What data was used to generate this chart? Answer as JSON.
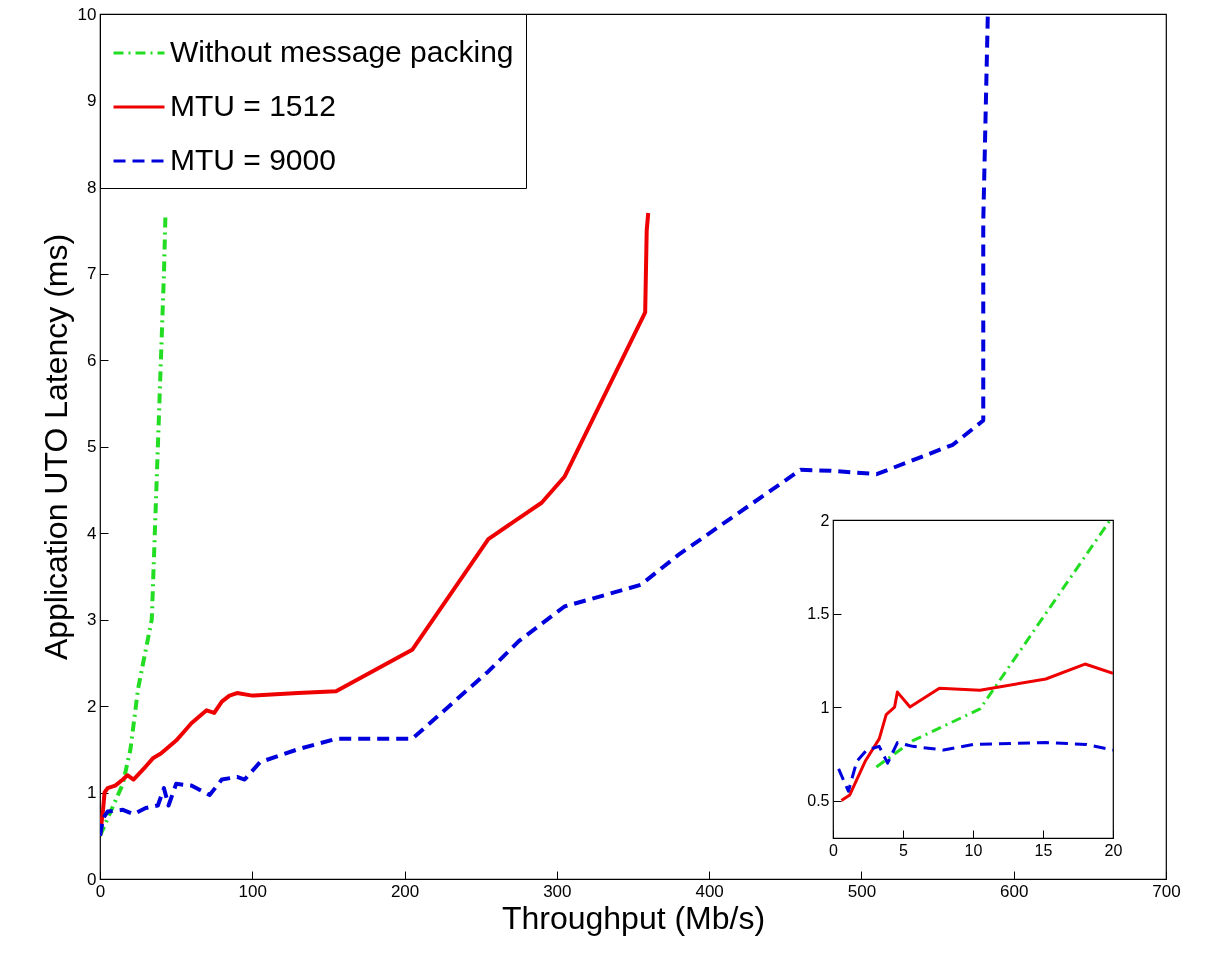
{
  "chart_data": [
    {
      "type": "line",
      "xlabel": "Throughput (Mb/s)",
      "ylabel": "Application UTO Latency (ms)",
      "xlim": [
        0,
        700
      ],
      "ylim": [
        0,
        10
      ],
      "xticks": [
        0,
        100,
        200,
        300,
        400,
        500,
        600,
        700
      ],
      "yticks": [
        0,
        1,
        2,
        3,
        4,
        5,
        6,
        7,
        8,
        9,
        10
      ],
      "grid": false,
      "legend": "top left",
      "series": [
        {
          "name": "Without message packing",
          "color": "#22dd22",
          "line_style": "dashdot",
          "x": [
            0,
            5,
            10,
            15,
            20,
            25,
            34,
            36,
            38,
            40,
            42,
            43
          ],
          "values": [
            0.5,
            0.7,
            0.9,
            1.1,
            1.5,
            2.2,
            3.0,
            4.0,
            5.0,
            6.0,
            7.0,
            7.7
          ]
        },
        {
          "name": "MTU = 1512",
          "color": "#ee0000",
          "line_style": "solid",
          "x": [
            0,
            2,
            3,
            5,
            10,
            15,
            18,
            22,
            30,
            35,
            40,
            50,
            55,
            60,
            70,
            75,
            80,
            85,
            90,
            100,
            130,
            155,
            205,
            255,
            290,
            305,
            358,
            359,
            360
          ],
          "values": [
            0.5,
            0.8,
            1.0,
            1.05,
            1.08,
            1.15,
            1.2,
            1.15,
            1.3,
            1.4,
            1.45,
            1.6,
            1.7,
            1.8,
            1.95,
            1.92,
            2.05,
            2.12,
            2.15,
            2.12,
            2.15,
            2.17,
            2.65,
            3.93,
            4.35,
            4.65,
            6.55,
            7.5,
            7.7
          ]
        },
        {
          "name": "MTU = 9000",
          "color": "#0000dd",
          "line_style": "dashed",
          "x": [
            0,
            2,
            5,
            15,
            22,
            30,
            38,
            42,
            45,
            50,
            60,
            72,
            80,
            90,
            95,
            105,
            130,
            155,
            205,
            255,
            275,
            305,
            355,
            380,
            460,
            480,
            510,
            560,
            580,
            580,
            583
          ],
          "values": [
            0.5,
            0.7,
            0.78,
            0.8,
            0.75,
            0.82,
            0.85,
            1.05,
            0.85,
            1.1,
            1.08,
            0.97,
            1.15,
            1.18,
            1.15,
            1.35,
            1.5,
            1.62,
            1.62,
            2.4,
            2.75,
            3.15,
            3.4,
            3.75,
            4.73,
            4.72,
            4.68,
            5.02,
            5.3,
            7.6,
            10
          ]
        }
      ]
    },
    {
      "type": "line",
      "xlim": [
        0,
        20
      ],
      "ylim": [
        0.3,
        2
      ],
      "xticks": [
        0,
        5,
        10,
        15,
        20
      ],
      "yticks": [
        0.5,
        {
          "value": 1,
          "label": "1"
        },
        1.5,
        {
          "value": 2,
          "label": "2"
        }
      ],
      "grid": false,
      "series": [
        {
          "color": "#22dd22",
          "line_style": "dashdot",
          "x": [
            3.1,
            5.7,
            10.5,
            19.8
          ],
          "values": [
            0.68,
            0.82,
            0.99,
            2.0
          ]
        },
        {
          "color": "#ee0000",
          "line_style": "solid",
          "x": [
            0.6,
            1.2,
            2.3,
            3.3,
            3.8,
            4.4,
            4.6,
            5.5,
            7.6,
            10.5,
            15.2,
            18,
            20
          ],
          "values": [
            0.5,
            0.53,
            0.71,
            0.83,
            0.96,
            1.0,
            1.08,
            1.0,
            1.1,
            1.09,
            1.15,
            1.23,
            1.18
          ]
        },
        {
          "color": "#0000dd",
          "line_style": "dashed",
          "x": [
            0.4,
            1.1,
            1.7,
            2.4,
            3.3,
            3.9,
            4.6,
            5.7,
            7.9,
            10,
            15.2,
            18.1,
            20
          ],
          "values": [
            0.67,
            0.55,
            0.71,
            0.77,
            0.79,
            0.7,
            0.81,
            0.79,
            0.77,
            0.8,
            0.81,
            0.8,
            0.77
          ]
        }
      ]
    }
  ]
}
